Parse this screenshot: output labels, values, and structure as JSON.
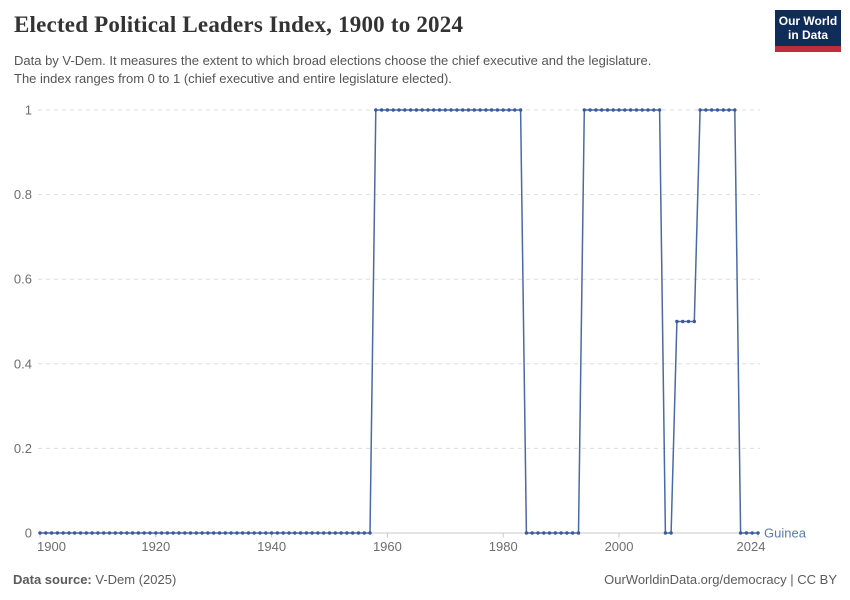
{
  "header": {
    "title": "Elected Political Leaders Index, 1900 to 2024",
    "subtitle_line1": "Data by V-Dem. It measures the extent to which broad elections choose the chief executive and the legislature.",
    "subtitle_line2": "The index ranges from 0 to 1 (chief executive and entire legislature elected).",
    "logo": {
      "line1": "Our World",
      "line2": "in Data",
      "bg_color": "#102d59",
      "accent_color": "#bc2e3e"
    }
  },
  "footer": {
    "source_label": "Data source:",
    "source_value": "V-Dem (2025)",
    "credit": "OurWorldinData.org/democracy | CC BY"
  },
  "chart_data": {
    "type": "line",
    "style": "yearly step line with point markers",
    "title": "Elected Political Leaders Index, 1900 to 2024",
    "entity": "Guinea",
    "xlabel": "",
    "ylabel": "",
    "xlim": [
      1900,
      2024
    ],
    "ylim": [
      0,
      1
    ],
    "x_ticks": [
      1900,
      1920,
      1940,
      1960,
      1980,
      2000,
      2024
    ],
    "y_ticks": [
      0,
      0.2,
      0.4,
      0.6,
      0.8,
      1
    ],
    "y_tick_labels": [
      "0",
      "0.2",
      "0.4",
      "0.6",
      "0.8",
      "1"
    ],
    "grid": "horizontal dashed gridlines, legend as entity label at right end of line",
    "line_color": "#4a69a5",
    "marker_color": "#3a5a9c",
    "entity_label_color": "#5b79ad",
    "axis_text_color": "#6e6e6e",
    "gridline_color": "#dddddd",
    "axis_line_color": "#c8c8c8",
    "series": [
      {
        "name": "Guinea",
        "segments": [
          {
            "from": 1900,
            "to": 1957,
            "value": 0
          },
          {
            "from": 1958,
            "to": 1983,
            "value": 1
          },
          {
            "from": 1984,
            "to": 1993,
            "value": 0
          },
          {
            "from": 1994,
            "to": 2007,
            "value": 1
          },
          {
            "from": 2008,
            "to": 2009,
            "value": 0
          },
          {
            "from": 2010,
            "to": 2013,
            "value": 0.5
          },
          {
            "from": 2014,
            "to": 2020,
            "value": 1
          },
          {
            "from": 2021,
            "to": 2024,
            "value": 0
          }
        ]
      }
    ]
  }
}
